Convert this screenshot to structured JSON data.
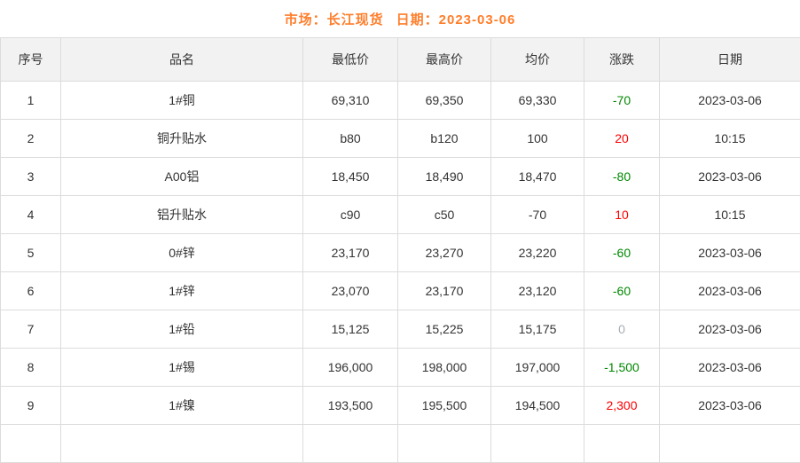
{
  "title": {
    "market": "市场：长江现货",
    "date": "日期：2023-03-06"
  },
  "table": {
    "columns": [
      "序号",
      "品名",
      "最低价",
      "最高价",
      "均价",
      "涨跌",
      "日期"
    ],
    "rows": [
      {
        "seq": "1",
        "name": "1#铜",
        "low": "69,310",
        "high": "69,350",
        "avg": "69,330",
        "change": "-70",
        "change_dir": "down",
        "date": "2023-03-06"
      },
      {
        "seq": "2",
        "name": "铜升贴水",
        "low": "b80",
        "high": "b120",
        "avg": "100",
        "change": "20",
        "change_dir": "up",
        "date": "10:15"
      },
      {
        "seq": "3",
        "name": "A00铝",
        "low": "18,450",
        "high": "18,490",
        "avg": "18,470",
        "change": "-80",
        "change_dir": "down",
        "date": "2023-03-06"
      },
      {
        "seq": "4",
        "name": "铝升贴水",
        "low": "c90",
        "high": "c50",
        "avg": "-70",
        "change": "10",
        "change_dir": "up",
        "date": "10:15"
      },
      {
        "seq": "5",
        "name": "0#锌",
        "low": "23,170",
        "high": "23,270",
        "avg": "23,220",
        "change": "-60",
        "change_dir": "down",
        "date": "2023-03-06"
      },
      {
        "seq": "6",
        "name": "1#锌",
        "low": "23,070",
        "high": "23,170",
        "avg": "23,120",
        "change": "-60",
        "change_dir": "down",
        "date": "2023-03-06"
      },
      {
        "seq": "7",
        "name": "1#铅",
        "low": "15,125",
        "high": "15,225",
        "avg": "15,175",
        "change": "0",
        "change_dir": "zero",
        "date": "2023-03-06"
      },
      {
        "seq": "8",
        "name": "1#锡",
        "low": "196,000",
        "high": "198,000",
        "avg": "197,000",
        "change": "-1,500",
        "change_dir": "down",
        "date": "2023-03-06"
      },
      {
        "seq": "9",
        "name": "1#镍",
        "low": "193,500",
        "high": "195,500",
        "avg": "194,500",
        "change": "2,300",
        "change_dir": "up",
        "date": "2023-03-06"
      }
    ]
  },
  "colors": {
    "title_orange": "#ff7e2b",
    "header_bg": "#f2f2f2",
    "border": "#dcdcdc",
    "text": "#333333",
    "up_red": "#fe0000",
    "down_green": "#008800",
    "neutral_gray": "#a8aeb5"
  }
}
